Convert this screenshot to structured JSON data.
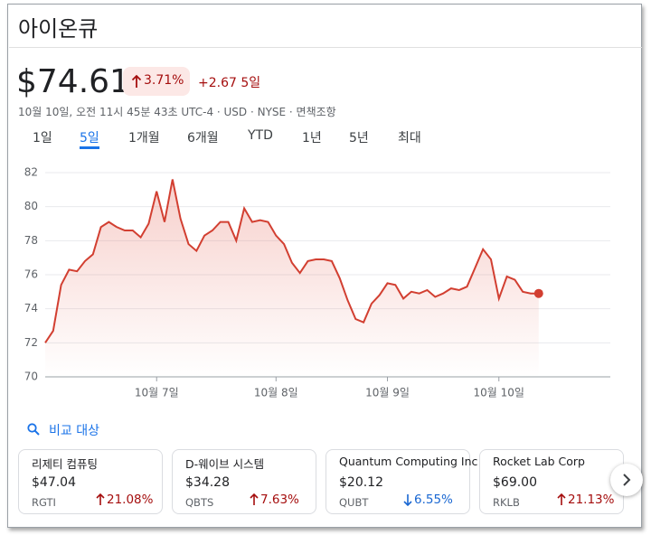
{
  "header": {
    "title": "아이온큐"
  },
  "quote": {
    "price": "$74.61",
    "change_percent": "3.71%",
    "direction": "up",
    "change_period": "+2.67 5일",
    "meta": "10월 10일, 오전 11시 45분 43초 UTC-4 · USD · NYSE · 면책조항"
  },
  "tabs": {
    "items": [
      "1일",
      "5일",
      "1개월",
      "6개월",
      "YTD",
      "1년",
      "5년",
      "최대"
    ],
    "selected": 1
  },
  "chart_data": {
    "type": "line",
    "color": "#d23f31",
    "grid": true,
    "categories": [
      null,
      null,
      null,
      null,
      null,
      null,
      null,
      null,
      null,
      null,
      null,
      null,
      null,
      null,
      "10월 7일",
      null,
      null,
      null,
      null,
      null,
      null,
      null,
      null,
      null,
      null,
      null,
      null,
      null,
      null,
      "10월 8일",
      null,
      null,
      null,
      null,
      null,
      null,
      null,
      null,
      null,
      null,
      null,
      null,
      null,
      "10월 9일",
      null,
      null,
      null,
      null,
      null,
      null,
      null,
      null,
      null,
      null,
      null,
      null,
      null,
      "10월 10일",
      null,
      null,
      null,
      null,
      null
    ],
    "values": [
      72.0,
      72.7,
      75.4,
      76.3,
      76.2,
      76.8,
      77.2,
      78.8,
      79.1,
      78.8,
      78.6,
      78.6,
      78.2,
      79.0,
      80.9,
      79.1,
      81.6,
      79.3,
      77.8,
      77.4,
      78.3,
      78.6,
      79.1,
      79.1,
      78.0,
      79.9,
      79.1,
      79.2,
      79.1,
      78.3,
      77.8,
      76.7,
      76.1,
      76.8,
      76.9,
      76.9,
      76.8,
      75.8,
      74.5,
      73.4,
      73.2,
      74.3,
      74.8,
      75.5,
      75.4,
      74.6,
      75.0,
      74.9,
      75.1,
      74.7,
      74.9,
      75.2,
      75.1,
      75.3,
      76.4,
      77.5,
      76.9,
      74.6,
      75.9,
      75.7,
      75.0,
      74.9,
      74.9
    ],
    "ylim": [
      70,
      82
    ],
    "yticks": [
      70,
      72,
      74,
      76,
      78,
      80,
      82
    ]
  },
  "compare": {
    "label": "비교 대상",
    "cards": [
      {
        "name": "리제티 컴퓨팅",
        "price": "$47.04",
        "ticker": "RGTI",
        "change": "21.08%",
        "direction": "up"
      },
      {
        "name": "D-웨이브 시스템",
        "price": "$34.28",
        "ticker": "QBTS",
        "change": "7.63%",
        "direction": "up"
      },
      {
        "name": "Quantum Computing Inc",
        "price": "$20.12",
        "ticker": "QUBT",
        "change": "6.55%",
        "direction": "down"
      },
      {
        "name": "Rocket Lab Corp",
        "price": "$69.00",
        "ticker": "RKLB",
        "change": "21.13%",
        "direction": "up"
      }
    ]
  }
}
